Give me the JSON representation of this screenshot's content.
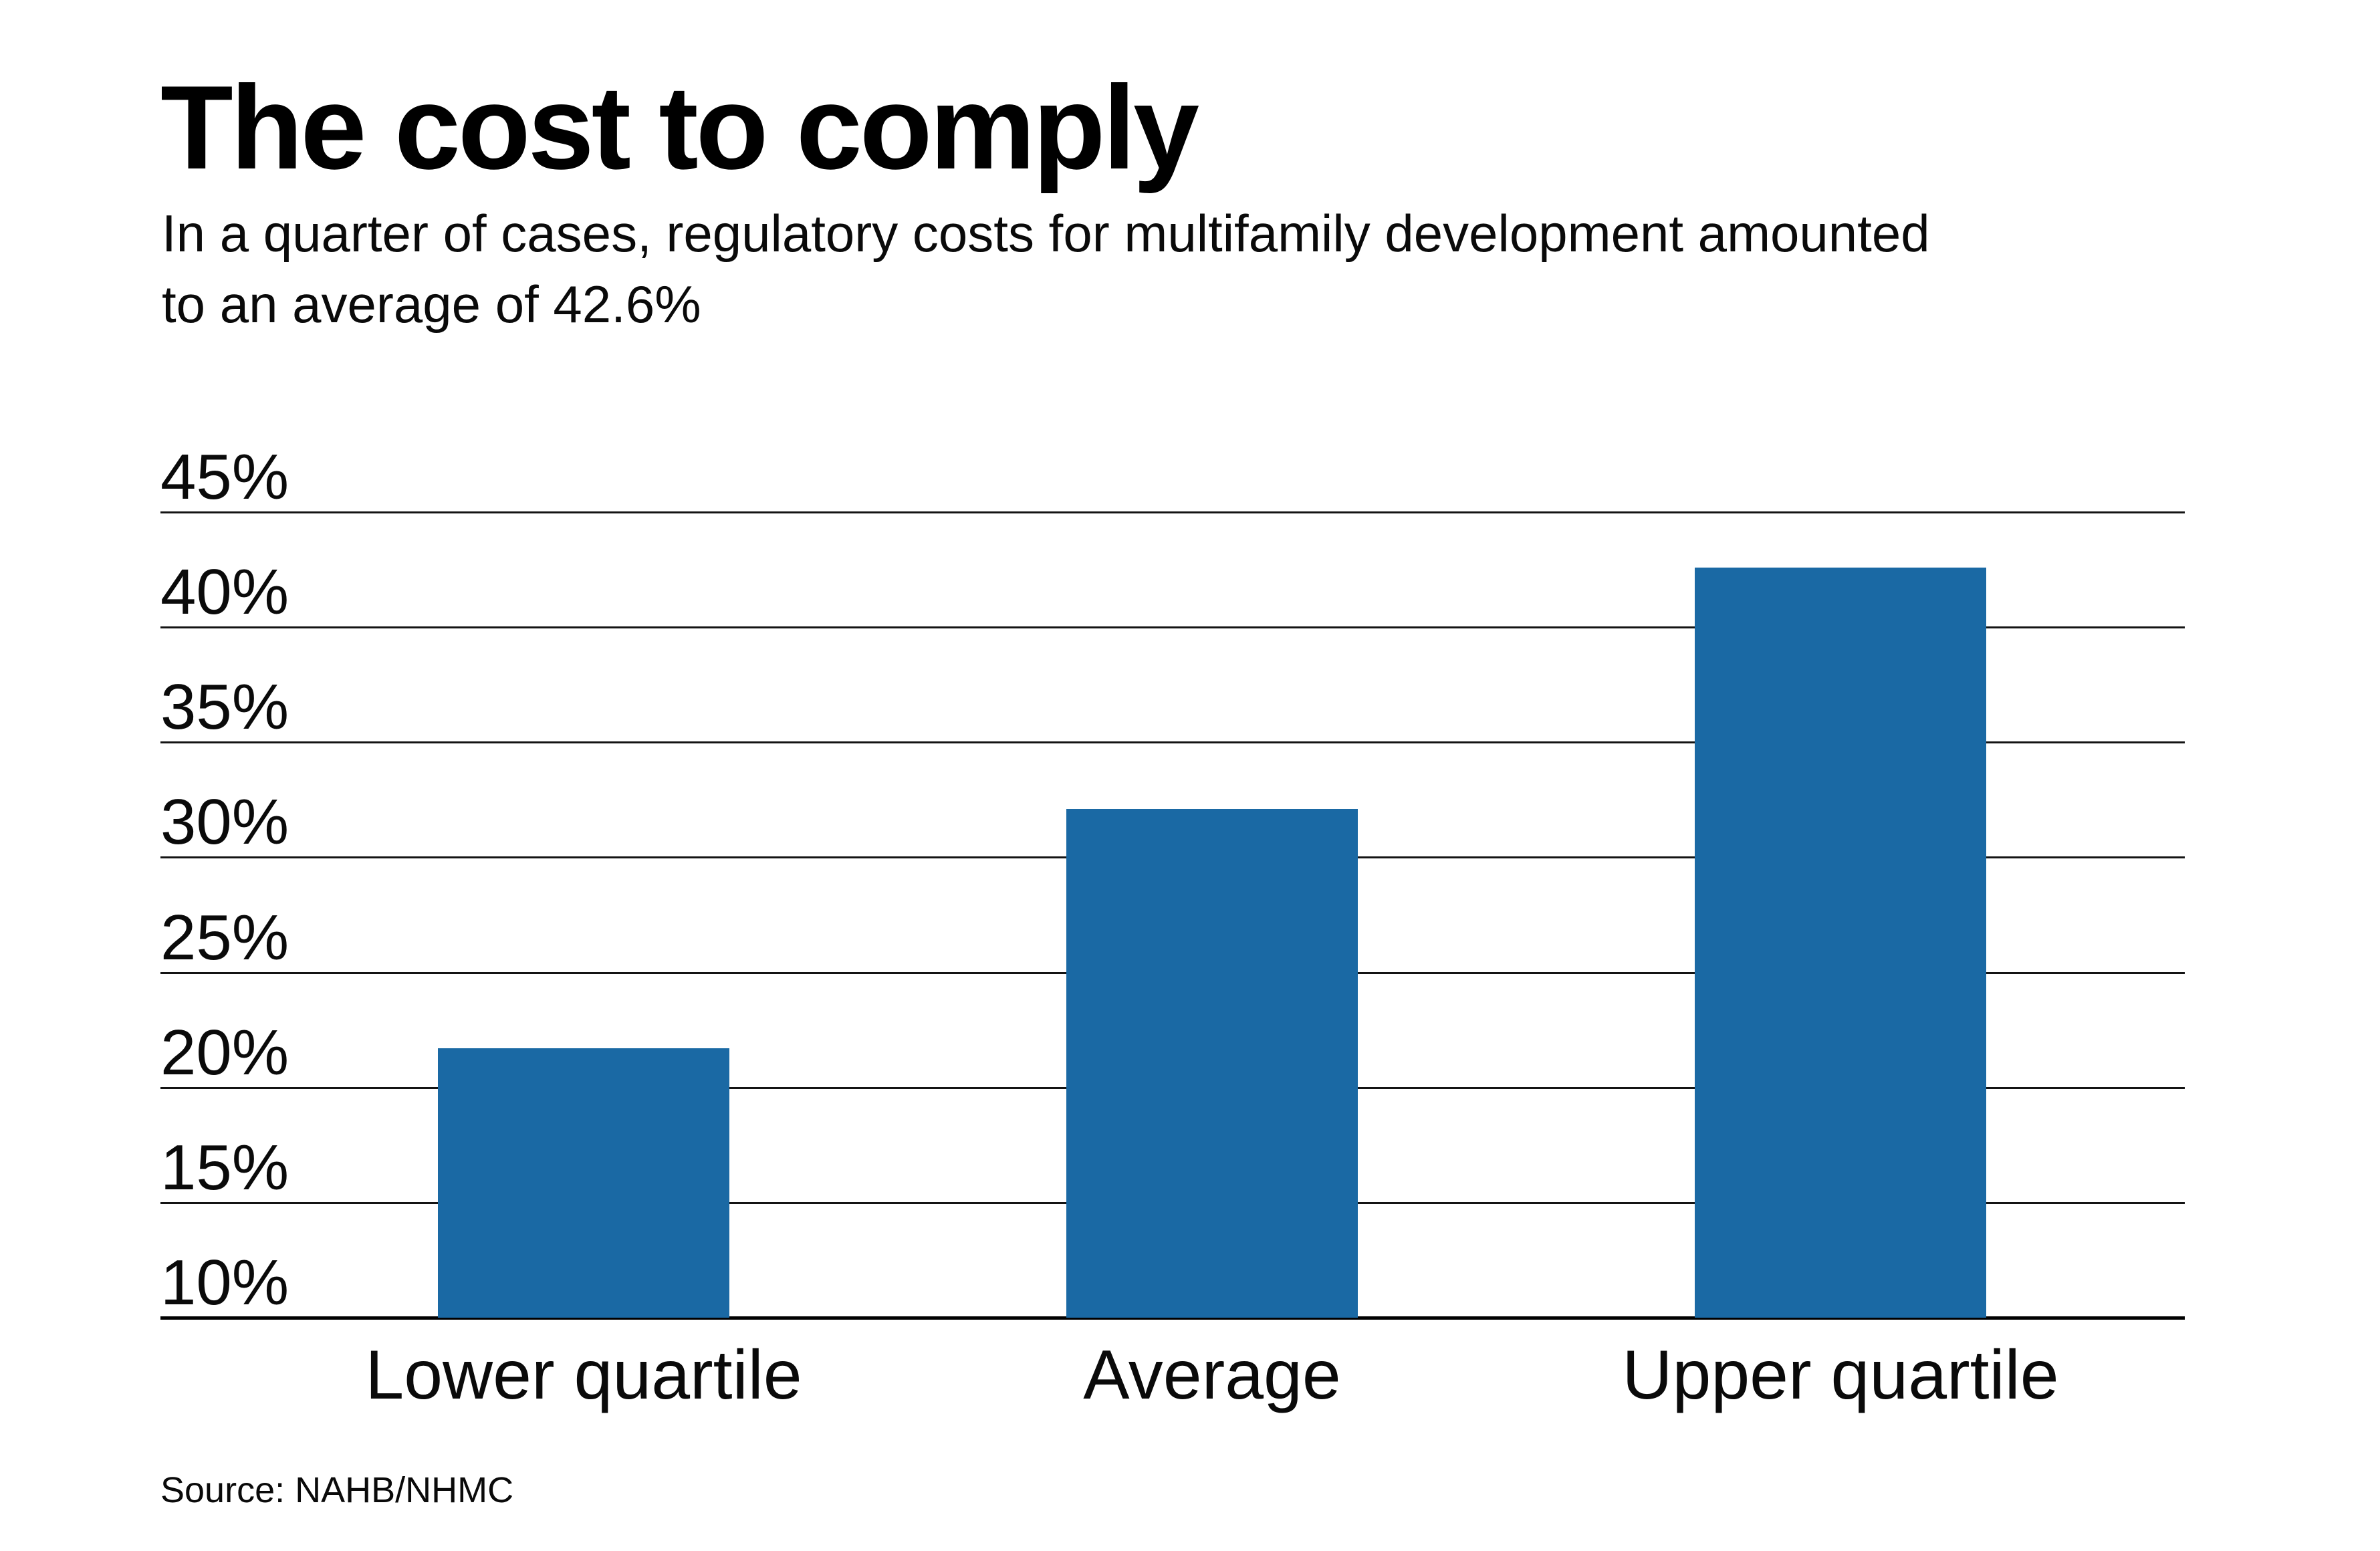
{
  "chart_data": {
    "type": "bar",
    "title": "The cost to comply",
    "subtitle_lines": [
      "In a quarter of cases, regulatory costs for multifamily development amounted",
      "to an average of 42.6%"
    ],
    "categories": [
      "Lower quartile",
      "Average",
      "Upper quartile"
    ],
    "values": [
      21.7,
      32.1,
      42.6
    ],
    "ylim": [
      10,
      45
    ],
    "ytick_values": [
      45,
      40,
      35,
      30,
      25,
      20,
      15,
      10
    ],
    "ytick_labels": [
      "45%",
      "40%",
      "35%",
      "30%",
      "25%",
      "20%",
      "15%",
      "10%"
    ],
    "grid": "horizontal",
    "legend": "none",
    "bar_color": "#1a69a4",
    "gridline_color": "#141414",
    "text_color": "#0a0a0a",
    "background_color": "#ffffff",
    "source": "Source: NAHB/NHMC"
  }
}
